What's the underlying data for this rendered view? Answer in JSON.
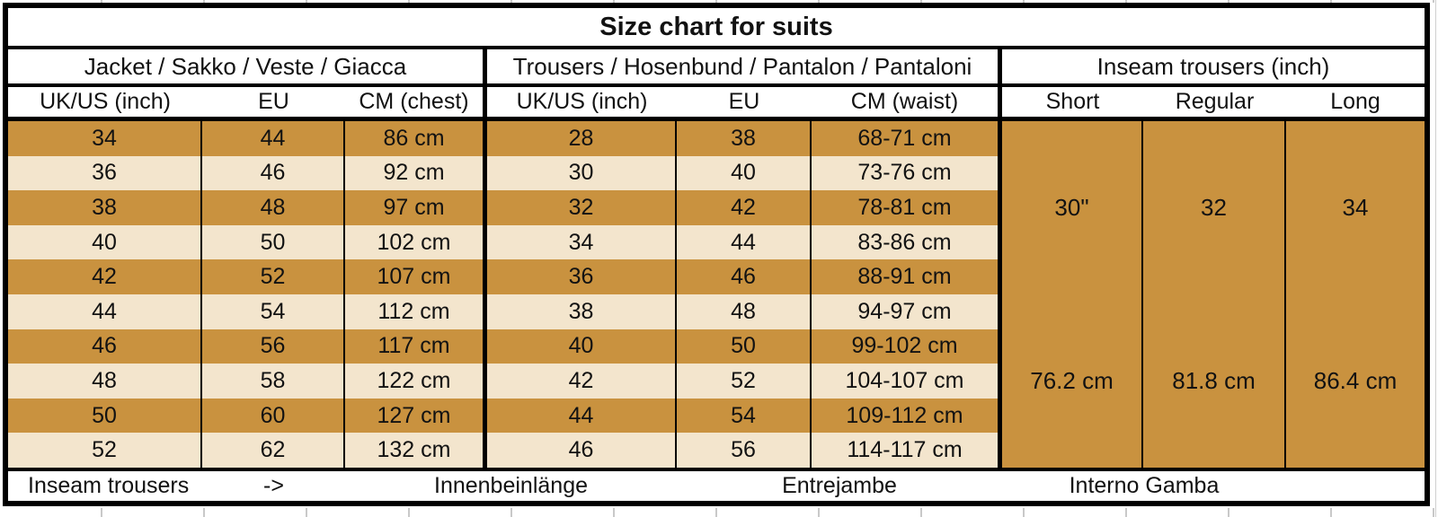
{
  "title": "Size chart for suits",
  "sections": [
    {
      "label": "Jacket / Sakko / Veste / Giacca",
      "columns": [
        "UK/US (inch)",
        "EU",
        "CM (chest)"
      ]
    },
    {
      "label": "Trousers / Hosenbund / Pantalon / Pantaloni",
      "columns": [
        "UK/US (inch)",
        "EU",
        "CM (waist)"
      ]
    },
    {
      "label": "Inseam trousers (inch)",
      "columns": [
        "Short",
        "Regular",
        "Long"
      ]
    }
  ],
  "rows": [
    [
      "34",
      "44",
      "86 cm",
      "28",
      "38",
      "68-71 cm"
    ],
    [
      "36",
      "46",
      "92 cm",
      "30",
      "40",
      "73-76 cm"
    ],
    [
      "38",
      "48",
      "97 cm",
      "32",
      "42",
      "78-81 cm"
    ],
    [
      "40",
      "50",
      "102 cm",
      "34",
      "44",
      "83-86 cm"
    ],
    [
      "42",
      "52",
      "107 cm",
      "36",
      "46",
      "88-91 cm"
    ],
    [
      "44",
      "54",
      "112 cm",
      "38",
      "48",
      "94-97 cm"
    ],
    [
      "46",
      "56",
      "117 cm",
      "40",
      "50",
      "99-102 cm"
    ],
    [
      "48",
      "58",
      "122 cm",
      "42",
      "52",
      "104-107 cm"
    ],
    [
      "50",
      "60",
      "127 cm",
      "44",
      "54",
      "109-112 cm"
    ],
    [
      "52",
      "62",
      "132 cm",
      "46",
      "56",
      "114-117 cm"
    ]
  ],
  "inseam_columns": [
    {
      "inch": "30\"",
      "cm": "76.2 cm"
    },
    {
      "inch": "32",
      "cm": "81.8 cm"
    },
    {
      "inch": "34",
      "cm": "86.4 cm"
    }
  ],
  "footer": {
    "labels": [
      "Inseam trousers",
      "->",
      "Innenbeinlänge",
      "Entrejambe",
      "Interno Gamba"
    ]
  },
  "colors": {
    "orange": "#c9923f",
    "cream": "#f3e5cd",
    "border": "#000000",
    "background": "#ffffff"
  }
}
